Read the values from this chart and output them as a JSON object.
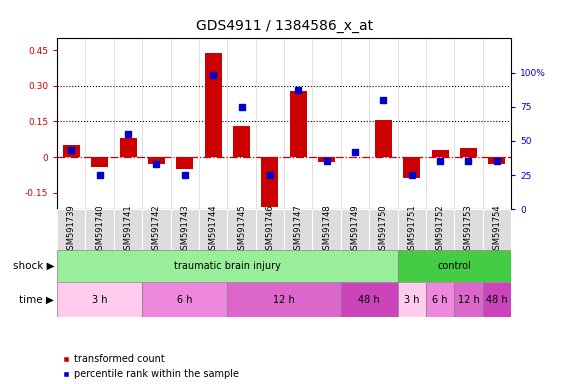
{
  "title": "GDS4911 / 1384586_x_at",
  "samples": [
    "GSM591739",
    "GSM591740",
    "GSM591741",
    "GSM591742",
    "GSM591743",
    "GSM591744",
    "GSM591745",
    "GSM591746",
    "GSM591747",
    "GSM591748",
    "GSM591749",
    "GSM591750",
    "GSM591751",
    "GSM591752",
    "GSM591753",
    "GSM591754"
  ],
  "bar_values": [
    0.05,
    -0.04,
    0.08,
    -0.03,
    -0.05,
    0.44,
    0.13,
    -0.21,
    0.28,
    -0.02,
    0.0,
    0.155,
    -0.09,
    0.03,
    0.04,
    -0.03
  ],
  "scatter_values": [
    43,
    25,
    55,
    33,
    25,
    98,
    75,
    25,
    87,
    35,
    42,
    80,
    25,
    35,
    35,
    35
  ],
  "bar_color": "#cc0000",
  "scatter_color": "#0000cc",
  "ylim_left": [
    -0.22,
    0.5
  ],
  "ylim_right": [
    0,
    125
  ],
  "yticks_left": [
    -0.15,
    0.0,
    0.15,
    0.3,
    0.45
  ],
  "yticks_right": [
    0,
    25,
    50,
    75,
    100
  ],
  "hline_y": 0.0,
  "dotted_lines": [
    0.15,
    0.3
  ],
  "shock_groups": [
    {
      "label": "traumatic brain injury",
      "start": 0,
      "end": 12,
      "color": "#99ee99"
    },
    {
      "label": "control",
      "start": 12,
      "end": 16,
      "color": "#44cc44"
    }
  ],
  "time_groups": [
    {
      "label": "3 h",
      "start": 0,
      "end": 3,
      "color": "#ffccee"
    },
    {
      "label": "6 h",
      "start": 3,
      "end": 6,
      "color": "#ee88dd"
    },
    {
      "label": "12 h",
      "start": 6,
      "end": 10,
      "color": "#dd66cc"
    },
    {
      "label": "48 h",
      "start": 10,
      "end": 12,
      "color": "#cc44bb"
    },
    {
      "label": "3 h",
      "start": 12,
      "end": 13,
      "color": "#ffccee"
    },
    {
      "label": "6 h",
      "start": 13,
      "end": 14,
      "color": "#ee88dd"
    },
    {
      "label": "12 h",
      "start": 14,
      "end": 15,
      "color": "#dd66cc"
    },
    {
      "label": "48 h",
      "start": 15,
      "end": 16,
      "color": "#cc44bb"
    }
  ],
  "shock_label": "shock",
  "time_label": "time",
  "legend_bar_label": "transformed count",
  "legend_scatter_label": "percentile rank within the sample",
  "bg_color": "#ffffff",
  "tick_label_fontsize": 6.5,
  "title_fontsize": 10,
  "label_fontsize": 7.5,
  "sample_cell_color": "#dddddd"
}
